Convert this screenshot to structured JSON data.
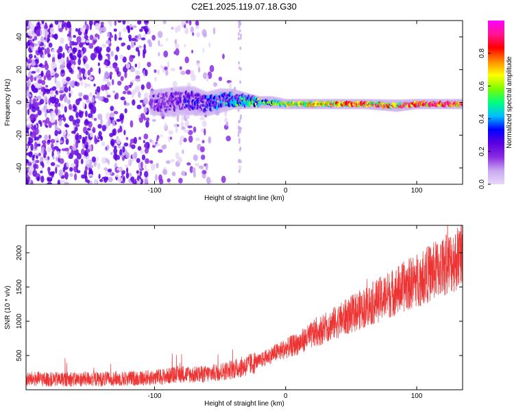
{
  "title": "C2E1.2025.119.07.18.G30",
  "colors": {
    "snr_line": "#ee3333",
    "colormap": [
      "#e8d8f8",
      "#c8a8f0",
      "#8a2be2",
      "#5a00e0",
      "#0000ff",
      "#00bfff",
      "#00ff7f",
      "#7cfc00",
      "#ffff00",
      "#ff8c00",
      "#ff0000",
      "#ff1493",
      "#ff00ff"
    ]
  },
  "chart_data": [
    {
      "type": "heatmap",
      "title": "",
      "xlabel": "Height of straight line (km)",
      "ylabel": "Frequency (Hz)",
      "xlim": [
        -198,
        135
      ],
      "ylim": [
        -50,
        50
      ],
      "xticks": [
        -100,
        0,
        100
      ],
      "xticklabels": [
        "-100",
        "0",
        "100"
      ],
      "yticks": [
        -40,
        -20,
        0,
        20,
        40
      ],
      "yticklabels": [
        "-40",
        "-20",
        "0",
        "20",
        "40"
      ],
      "colorbar": {
        "label": "Normalized spectral amplitude",
        "range": [
          0,
          1
        ],
        "ticks": [
          0.0,
          0.2,
          0.4,
          0.6,
          0.8
        ],
        "ticklabels": [
          "0.0",
          "0.2",
          "0.4",
          "0.6",
          "0.8"
        ]
      },
      "signal_band": [
        {
          "x": -103,
          "freq": 0,
          "width": 6,
          "amplitude": 0.2
        },
        {
          "x": -90,
          "freq": 0,
          "width": 7,
          "amplitude": 0.22
        },
        {
          "x": -80,
          "freq": 1,
          "width": 7,
          "amplitude": 0.25
        },
        {
          "x": -70,
          "freq": 1,
          "width": 7,
          "amplitude": 0.3
        },
        {
          "x": -60,
          "freq": -1,
          "width": 6,
          "amplitude": 0.32
        },
        {
          "x": -50,
          "freq": 1,
          "width": 6,
          "amplitude": 0.38
        },
        {
          "x": -40,
          "freq": 2,
          "width": 5,
          "amplitude": 0.45
        },
        {
          "x": -30,
          "freq": 1,
          "width": 4,
          "amplitude": 0.5
        },
        {
          "x": -20,
          "freq": 0,
          "width": 3,
          "amplitude": 0.55
        },
        {
          "x": -10,
          "freq": 0,
          "width": 3,
          "amplitude": 0.62
        },
        {
          "x": 0,
          "freq": -1,
          "width": 2.5,
          "amplitude": 0.68
        },
        {
          "x": 20,
          "freq": -1,
          "width": 2.5,
          "amplitude": 0.75
        },
        {
          "x": 40,
          "freq": -1,
          "width": 2.5,
          "amplitude": 0.82
        },
        {
          "x": 60,
          "freq": -1,
          "width": 2.5,
          "amplitude": 0.88
        },
        {
          "x": 85,
          "freq": -2,
          "width": 3,
          "amplitude": 0.9
        },
        {
          "x": 100,
          "freq": -1,
          "width": 2.5,
          "amplitude": 0.95
        },
        {
          "x": 135,
          "freq": -1,
          "width": 2.5,
          "amplitude": 0.97
        }
      ],
      "noise_region_xlim": [
        -198,
        -34
      ]
    },
    {
      "type": "line",
      "title": "",
      "xlabel": "Height of straight line (km)",
      "ylabel": "SNR (10 * v/v)",
      "xlim": [
        -198,
        135
      ],
      "ylim": [
        0,
        2400
      ],
      "xticks": [
        -100,
        0,
        100
      ],
      "xticklabels": [
        "-100",
        "0",
        "100"
      ],
      "yticks": [
        500,
        1000,
        1500,
        2000
      ],
      "yticklabels": [
        "500",
        "1000",
        "1500",
        "2000"
      ],
      "series": [
        {
          "x": [
            -198,
            -190,
            -180,
            -170,
            -160,
            -150,
            -140,
            -130,
            -120,
            -110,
            -100,
            -90,
            -80,
            -70,
            -60,
            -50,
            -40,
            -30,
            -20,
            -10,
            0,
            10,
            20,
            30,
            40,
            50,
            60,
            70,
            80,
            90,
            100,
            110,
            120,
            130,
            135
          ],
          "y": [
            150,
            160,
            150,
            155,
            150,
            160,
            155,
            160,
            165,
            170,
            180,
            200,
            230,
            220,
            230,
            260,
            300,
            350,
            420,
            520,
            600,
            680,
            800,
            900,
            1000,
            1100,
            1200,
            1300,
            1400,
            1500,
            1600,
            1700,
            1800,
            1900,
            2000
          ]
        }
      ]
    }
  ]
}
